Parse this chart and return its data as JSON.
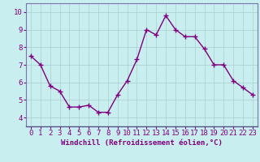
{
  "x": [
    0,
    1,
    2,
    3,
    4,
    5,
    6,
    7,
    8,
    9,
    10,
    11,
    12,
    13,
    14,
    15,
    16,
    17,
    18,
    19,
    20,
    21,
    22,
    23
  ],
  "y": [
    7.5,
    7.0,
    5.8,
    5.5,
    4.6,
    4.6,
    4.7,
    4.3,
    4.3,
    5.3,
    6.1,
    7.3,
    9.0,
    8.7,
    9.8,
    9.0,
    8.6,
    8.6,
    7.9,
    7.0,
    7.0,
    6.1,
    5.7,
    5.3
  ],
  "line_color": "#800080",
  "marker": "+",
  "marker_size": 4,
  "marker_lw": 1.0,
  "line_width": 1.0,
  "bg_color": "#c8eef0",
  "grid_color": "#aacccc",
  "border_color": "#7777aa",
  "xlabel": "Windchill (Refroidissement éolien,°C)",
  "xlabel_color": "#800080",
  "tick_color": "#800080",
  "ylim": [
    3.5,
    10.5
  ],
  "xlim": [
    -0.5,
    23.5
  ],
  "yticks": [
    4,
    5,
    6,
    7,
    8,
    9,
    10
  ],
  "xticks": [
    0,
    1,
    2,
    3,
    4,
    5,
    6,
    7,
    8,
    9,
    10,
    11,
    12,
    13,
    14,
    15,
    16,
    17,
    18,
    19,
    20,
    21,
    22,
    23
  ],
  "font_size": 6.5,
  "xlabel_fontsize": 6.5
}
